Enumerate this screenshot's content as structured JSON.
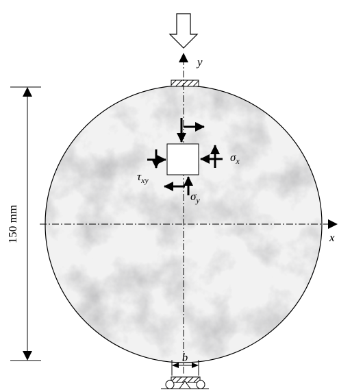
{
  "labels": {
    "y_axis": "y",
    "x_axis": "x",
    "diameter": "150 mm",
    "width": "b",
    "sigma_x": {
      "symbol": "σ",
      "subscript": "x"
    },
    "sigma_y": {
      "symbol": "σ",
      "subscript": "y"
    },
    "tau_xy": {
      "symbol": "τ",
      "subscript": "xy"
    }
  }
}
